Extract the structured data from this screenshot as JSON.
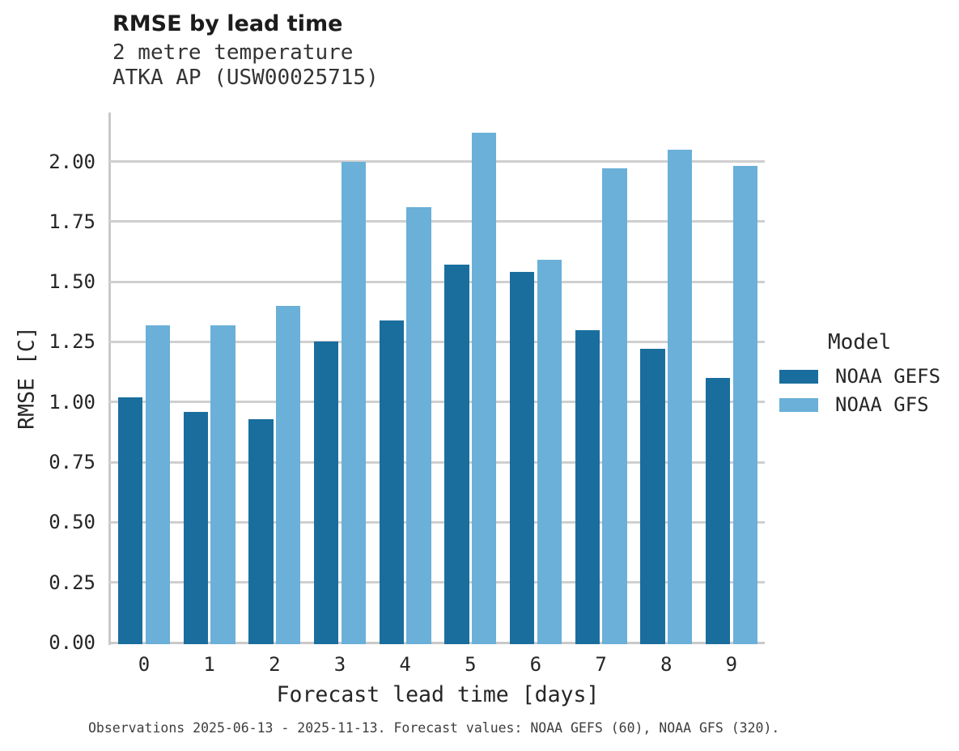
{
  "header": {
    "title": "RMSE by lead time",
    "subtitle_line1": "2 metre temperature",
    "subtitle_line2": "ATKA AP (USW00025715)"
  },
  "footer": {
    "text": "Observations 2025-06-13 - 2025-11-13. Forecast values: NOAA GEFS (60), NOAA GFS (320)."
  },
  "legend": {
    "title": "Model"
  },
  "chart_data": {
    "type": "bar",
    "title": "RMSE by lead time",
    "subtitle": [
      "2 metre temperature",
      "ATKA AP (USW00025715)"
    ],
    "xlabel": "Forecast lead time [days]",
    "ylabel": "RMSE [C]",
    "categories": [
      "0",
      "1",
      "2",
      "3",
      "4",
      "5",
      "6",
      "7",
      "8",
      "9"
    ],
    "series": [
      {
        "name": "NOAA GEFS",
        "color": "#1a6e9e",
        "values": [
          1.02,
          0.96,
          0.93,
          1.25,
          1.34,
          1.57,
          1.54,
          1.3,
          1.22,
          1.1
        ]
      },
      {
        "name": "NOAA GFS",
        "color": "#6ab0d8",
        "values": [
          1.32,
          1.32,
          1.4,
          2.0,
          1.81,
          2.12,
          1.59,
          1.97,
          2.05,
          1.98
        ]
      }
    ],
    "ylim": [
      0,
      2.2
    ],
    "ytick_labels": [
      "0.00",
      "0.25",
      "0.50",
      "0.75",
      "1.00",
      "1.25",
      "1.50",
      "1.75",
      "2.00"
    ],
    "grid": true,
    "grid_color": "#cfcfcf",
    "legend_title": "Model",
    "legend_position": "right"
  }
}
